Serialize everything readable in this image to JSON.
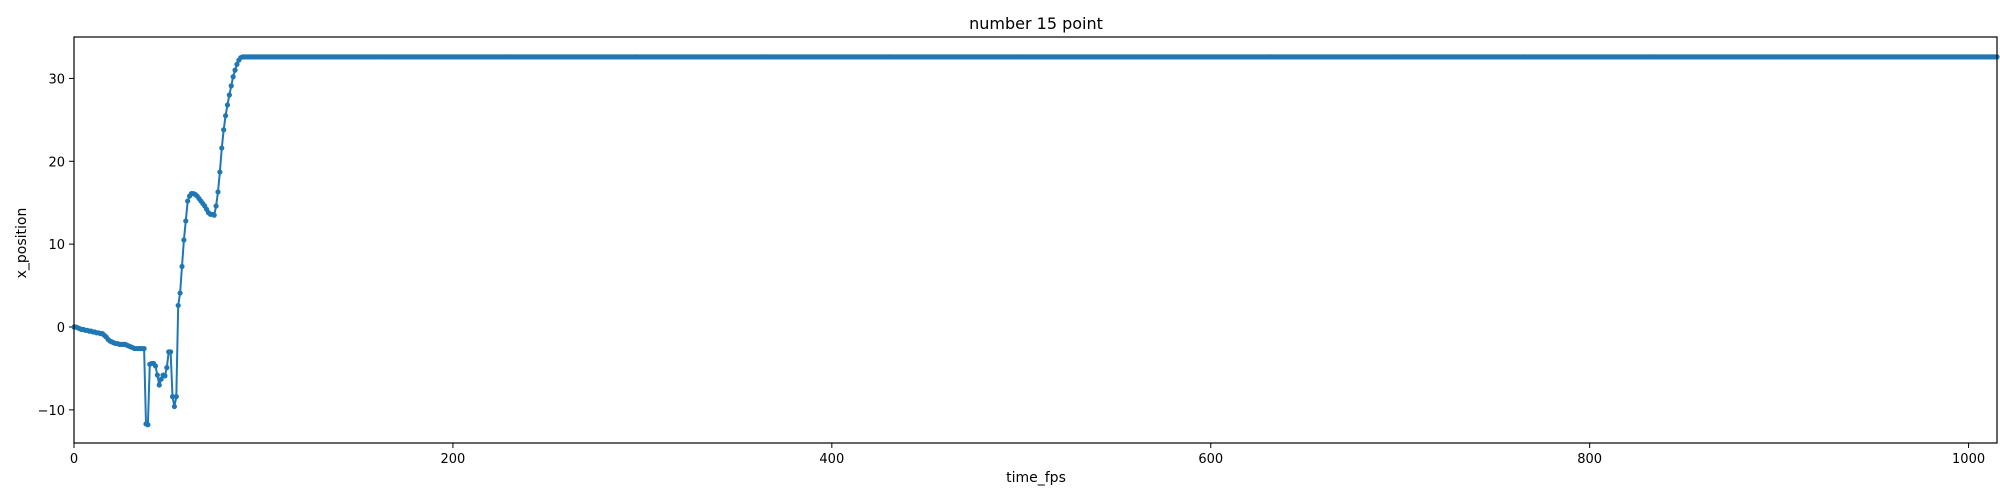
{
  "chart_data": {
    "type": "line",
    "title": "number 15 point",
    "xlabel": "time_fps",
    "ylabel": "x_position",
    "xlim": [
      0,
      1015
    ],
    "ylim": [
      -14,
      35
    ],
    "x_ticks": [
      0,
      200,
      400,
      600,
      800,
      1000
    ],
    "y_ticks": [
      -10,
      0,
      10,
      20,
      30
    ],
    "x_tick_labels": [
      "0",
      "200",
      "400",
      "600",
      "800",
      "1000"
    ],
    "y_tick_labels": [
      "−10",
      "0",
      "10",
      "20",
      "30"
    ],
    "grid": false,
    "marker": "circle",
    "series": [
      {
        "color": "#1f77b4",
        "x_start": 0,
        "x_step": 1,
        "initial_values": [
          0.0,
          0.0,
          -0.1,
          -0.2,
          -0.3,
          -0.3,
          -0.4,
          -0.4,
          -0.5,
          -0.5,
          -0.6,
          -0.6,
          -0.7,
          -0.7,
          -0.8,
          -0.8,
          -1.0,
          -1.2,
          -1.5,
          -1.7,
          -1.8,
          -1.9,
          -2.0,
          -2.0,
          -2.1,
          -2.1,
          -2.1,
          -2.1,
          -2.2,
          -2.3,
          -2.4,
          -2.5,
          -2.6,
          -2.6,
          -2.6,
          -2.6,
          -2.6,
          -2.6,
          -11.7,
          -11.8,
          -4.5,
          -4.4,
          -4.4,
          -4.7,
          -5.8,
          -7.0,
          -6.3,
          -5.8,
          -5.9,
          -4.9,
          -3.0,
          -3.0,
          -8.4,
          -9.6,
          -8.4,
          2.6,
          4.1,
          7.3,
          10.5,
          12.8,
          15.2,
          15.8,
          16.1,
          16.1,
          16.0,
          15.8,
          15.5,
          15.2,
          14.9,
          14.6,
          14.2,
          13.8,
          13.6,
          13.6,
          13.5,
          14.6,
          16.3,
          18.7,
          21.6,
          23.8,
          25.5,
          26.8,
          28.0,
          29.1,
          30.2,
          31.0,
          31.7,
          32.2,
          32.5,
          32.6,
          32.6,
          32.6
        ],
        "plateau_value": 32.6,
        "plateau_until_x": 1015
      }
    ]
  }
}
